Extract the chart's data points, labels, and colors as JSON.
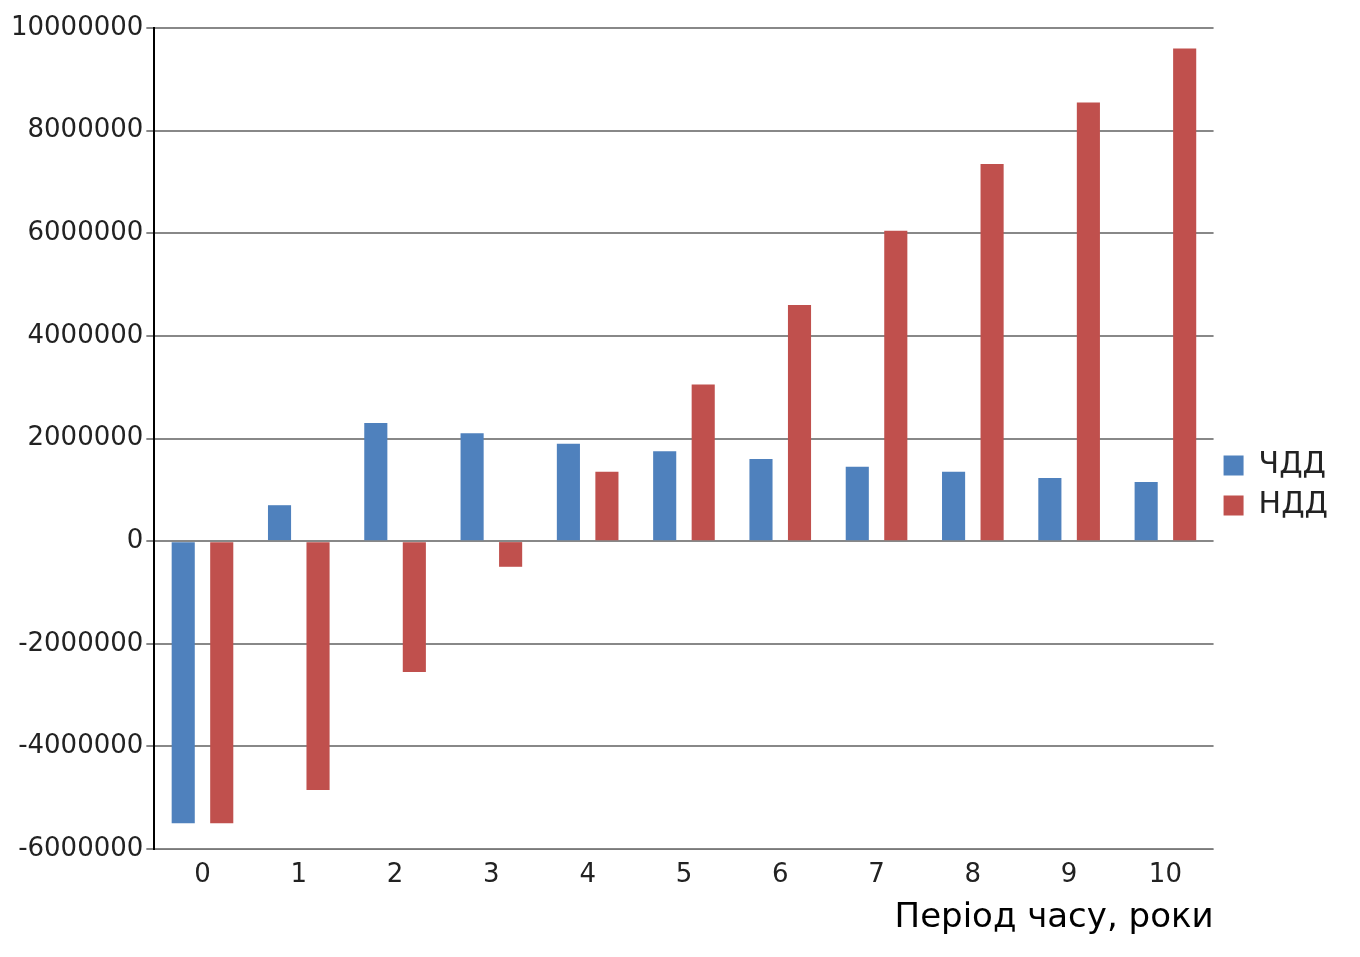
{
  "chart_data": {
    "type": "bar",
    "xlabel": "Період часу, роки",
    "categories": [
      "0",
      "1",
      "2",
      "3",
      "4",
      "5",
      "6",
      "7",
      "8",
      "9",
      "10"
    ],
    "series": [
      {
        "name": "ЧДД",
        "color": "#4f81bd",
        "values": [
          -5500000,
          700000,
          2300000,
          2100000,
          1900000,
          1750000,
          1600000,
          1450000,
          1350000,
          1230000,
          1150000
        ]
      },
      {
        "name": "НДД",
        "color": "#c0504d",
        "values": [
          -5500000,
          -4850000,
          -2550000,
          -500000,
          1350000,
          3050000,
          4600000,
          6050000,
          7350000,
          8550000,
          9600000
        ]
      }
    ],
    "ylim": [
      -6000000,
      10000000
    ],
    "yticks": [
      -6000000,
      -4000000,
      -2000000,
      0,
      2000000,
      4000000,
      6000000,
      8000000,
      10000000
    ],
    "grid": "y",
    "legend": "right"
  }
}
